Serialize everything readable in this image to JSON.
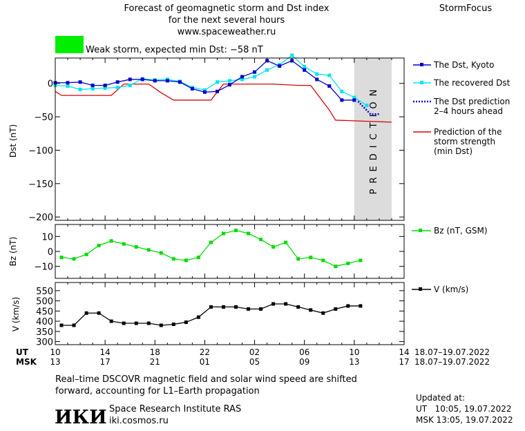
{
  "header": {
    "title_lines": [
      "Forecast of geomagnetic storm and Dst index",
      "for the next several hours",
      "www.spaceweather.ru"
    ],
    "brand": "StormFocus",
    "status_label": "Weak storm, expected min Dst: −58 nT",
    "status_color": "#00ee00"
  },
  "watermark": "PREDICTION",
  "chart_data": [
    {
      "type": "line",
      "ylabel": "Dst (nT)",
      "ylim": [
        -205,
        38
      ],
      "yticks": [
        0,
        -50,
        -100,
        -150,
        -200
      ],
      "ytick_labels": [
        "0",
        "−50",
        "−100",
        "−150",
        "−200"
      ],
      "grid": false,
      "legend_position": "right",
      "series": [
        {
          "name": "The Dst, Kyoto",
          "color": "#0000cc",
          "marker": "square",
          "x": [
            0,
            1,
            2,
            3,
            4,
            5,
            6,
            7,
            8,
            9,
            10,
            11,
            12,
            13,
            14,
            15,
            16,
            17,
            18,
            19,
            20,
            21,
            22,
            23,
            24
          ],
          "values": [
            1,
            1,
            2,
            -3,
            -3,
            2,
            6,
            6,
            4,
            4,
            2,
            -8,
            -13,
            -12,
            -2,
            10,
            17,
            34,
            26,
            34,
            20,
            6,
            -4,
            -25,
            -25
          ]
        },
        {
          "name": "The recovered Dst",
          "color": "#00e5ee",
          "marker": "square",
          "x": [
            0,
            1,
            2,
            3,
            4,
            5,
            6,
            7,
            8,
            9,
            10,
            11,
            12,
            13,
            14,
            15,
            16,
            17,
            18,
            19,
            20,
            21,
            22,
            23,
            24,
            25
          ],
          "values": [
            -3,
            -4,
            -9,
            -8,
            -7,
            -6,
            -3,
            7,
            5,
            6,
            3,
            -6,
            -10,
            2,
            4,
            6,
            10,
            20,
            28,
            42,
            25,
            14,
            12,
            -12,
            -21,
            -33
          ]
        },
        {
          "name": "The Dst prediction\n2–4 hours ahead",
          "color": "#0000cc",
          "style": "dotted",
          "x": [
            24.3,
            25.3,
            26
          ],
          "values": [
            -27,
            -46,
            -46
          ]
        },
        {
          "name": "Prediction of the\nstorm strength\n(min Dst)",
          "color": "#dd0000",
          "style": "solid",
          "x": [
            0,
            0.5,
            4.5,
            5.5,
            7.5,
            8.5,
            9.5,
            12.5,
            13.5,
            17.5,
            19.5,
            20.5,
            22,
            22.5,
            27
          ],
          "values": [
            -12,
            -18,
            -18,
            -1,
            -1,
            -14,
            -25,
            -25,
            -1,
            -1,
            -3,
            -3,
            -40,
            -55,
            -58
          ]
        }
      ],
      "prediction_region": [
        24,
        27
      ]
    },
    {
      "type": "line",
      "ylabel": "Bz (nT)",
      "ylim": [
        -18,
        18
      ],
      "yticks": [
        10,
        0,
        -10
      ],
      "ytick_labels": [
        "10",
        "0",
        "−10"
      ],
      "series": [
        {
          "name": "Bz (nT, GSM)",
          "color": "#00dd00",
          "marker": "square",
          "x": [
            0.5,
            1.5,
            2.5,
            3.5,
            4.5,
            5.5,
            6.5,
            7.5,
            8.5,
            9.5,
            10.5,
            11.5,
            12.5,
            13.5,
            14.5,
            15.5,
            16.5,
            17.5,
            18.5,
            19.5,
            20.5,
            21.5,
            22.5,
            23.5,
            24.5
          ],
          "values": [
            -4,
            -5,
            -2,
            4,
            7,
            5,
            3,
            1,
            -1,
            -5,
            -6,
            -4,
            6,
            12,
            14,
            12,
            8,
            3,
            6,
            -5,
            -4,
            -6,
            -10,
            -8,
            -6
          ]
        }
      ]
    },
    {
      "type": "line",
      "ylabel": "V (km/s)",
      "ylim": [
        285,
        590
      ],
      "yticks": [
        300,
        350,
        400,
        450,
        500,
        550
      ],
      "ytick_labels": [
        "300",
        "350",
        "400",
        "450",
        "500",
        "550"
      ],
      "series": [
        {
          "name": "V (km/s)",
          "color": "#000000",
          "marker": "square",
          "x": [
            0.5,
            1.5,
            2.5,
            3.5,
            4.5,
            5.5,
            6.5,
            7.5,
            8.5,
            9.5,
            10.5,
            11.5,
            12.5,
            13.5,
            14.5,
            15.5,
            16.5,
            17.5,
            18.5,
            19.5,
            20.5,
            21.5,
            22.5,
            23.5,
            24.5
          ],
          "values": [
            380,
            380,
            440,
            440,
            400,
            390,
            390,
            390,
            380,
            385,
            395,
            420,
            470,
            470,
            470,
            460,
            460,
            485,
            485,
            470,
            455,
            440,
            460,
            475,
            475
          ]
        }
      ]
    }
  ],
  "time_axis": {
    "ut_label": "UT",
    "msk_label": "MSK",
    "ticks": [
      0,
      4,
      8,
      12,
      16,
      20,
      24,
      28
    ],
    "ut_ticks": [
      "10",
      "14",
      "18",
      "22",
      "02",
      "06",
      "10",
      "14"
    ],
    "msk_ticks": [
      "13",
      "17",
      "21",
      "01",
      "05",
      "09",
      "13",
      "17"
    ],
    "ut_date": "18.07–19.07.2022",
    "msk_date": "18.07–19.07.2022"
  },
  "footer": {
    "note_lines": [
      "Real–time DSCOVR magnetic field and solar wind speed are shifted",
      "forward, accounting for L1–Earth propagation"
    ],
    "logo": "ИКИ",
    "institute": "Space Research Institute RAS",
    "site": "iki.cosmos.ru",
    "updated_label": "Updated at:",
    "updated_ut": "UT   10:05, 19.07.2022",
    "updated_msk": "MSK 13:05, 19.07.2022"
  }
}
